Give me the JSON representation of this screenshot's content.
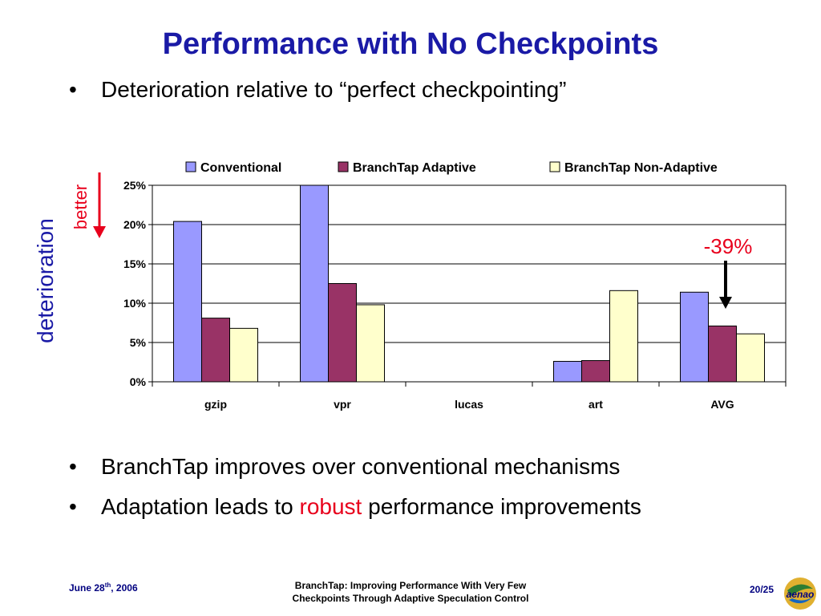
{
  "slide": {
    "title": "Performance with No Checkpoints",
    "bullets": {
      "b1": "Deterioration relative to “perfect checkpointing”",
      "b2": "BranchTap improves over conventional mechanisms",
      "b3_pre": "Adaptation leads to ",
      "b3_highlight": "robust",
      "b3_post": " performance improvements"
    },
    "bullet_char": "•",
    "side_label": "deterioration",
    "better_label": "better",
    "annotation": "-39%",
    "footer": {
      "date_pre": "June 28",
      "date_sup": "th",
      "date_post": ", 2006",
      "center_line1": "BranchTap: Improving Performance With Very Few",
      "center_line2": "Checkpoints Through Adaptive Speculation Control",
      "page": "20/25",
      "logo_text": "aenao"
    }
  },
  "colors": {
    "title": "#1a1aa6",
    "highlight": "#e8001c",
    "conventional": "#9999ff",
    "adaptive": "#993366",
    "non_adaptive": "#ffffcc"
  },
  "chart_data": {
    "type": "bar",
    "categories": [
      "gzip",
      "vpr",
      "lucas",
      "art",
      "AVG"
    ],
    "series": [
      {
        "name": "Conventional",
        "color": "#9999ff",
        "values": [
          20.4,
          25.0,
          0,
          2.6,
          11.4
        ]
      },
      {
        "name": "BranchTap Adaptive",
        "color": "#993366",
        "values": [
          8.1,
          12.5,
          0,
          2.7,
          7.1
        ]
      },
      {
        "name": "BranchTap Non-Adaptive",
        "color": "#ffffcc",
        "values": [
          6.8,
          9.8,
          0,
          11.6,
          6.1
        ]
      }
    ],
    "ylim": [
      0,
      25
    ],
    "yticks": [
      "0%",
      "5%",
      "10%",
      "15%",
      "20%",
      "25%"
    ],
    "ytick_values": [
      0,
      5,
      10,
      15,
      20,
      25
    ],
    "grid": true,
    "legend": "top"
  }
}
